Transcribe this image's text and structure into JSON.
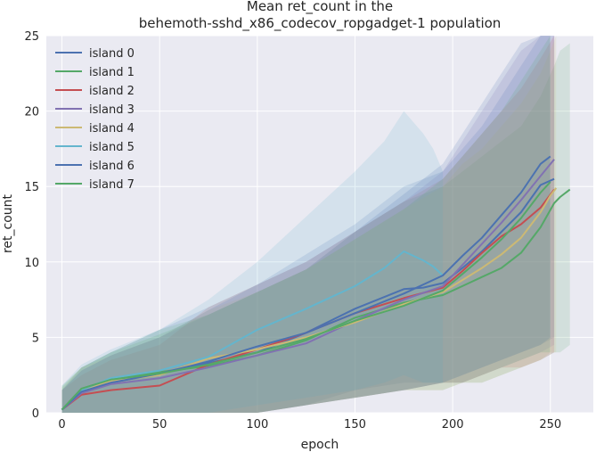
{
  "chart_data": {
    "type": "line",
    "title_lines": [
      "Mean ret_count in the",
      "behemoth-sshd_x86_codecov_ropgadget-1 population"
    ],
    "xlabel": "epoch",
    "ylabel": "ret_count",
    "xlim": [
      -8,
      272
    ],
    "ylim": [
      0,
      25
    ],
    "x_ticks": [
      0,
      50,
      100,
      150,
      200,
      250
    ],
    "y_ticks": [
      0,
      5,
      10,
      15,
      20,
      25
    ],
    "grid": true,
    "background": "#eaeaf2",
    "legend_position": "upper-left",
    "band": "shaded spread around each mean line",
    "series": [
      {
        "name": "island 0",
        "color": "#4c72b0",
        "x": [
          0,
          10,
          25,
          50,
          75,
          100,
          125,
          150,
          175,
          185,
          195,
          205,
          215,
          225,
          235,
          245,
          252
        ],
        "y": [
          0.2,
          1.4,
          2.0,
          2.6,
          3.3,
          4.0,
          5.3,
          6.9,
          8.2,
          8.3,
          8.6,
          9.6,
          10.7,
          12.0,
          13.3,
          15.1,
          15.5
        ],
        "band_low": [
          0,
          0,
          0,
          0,
          0,
          0,
          0.5,
          1.5,
          2,
          2,
          2,
          2.5,
          3,
          3.5,
          4,
          4.5,
          5
        ],
        "band_high": [
          1.5,
          3,
          4,
          5.5,
          7,
          8.5,
          10.5,
          12.5,
          15,
          15.5,
          16,
          17.5,
          19,
          21,
          23,
          25,
          25
        ]
      },
      {
        "name": "island 1",
        "color": "#55a868",
        "x": [
          0,
          10,
          25,
          50,
          75,
          100,
          125,
          150,
          175,
          195,
          205,
          215,
          225,
          235,
          245,
          252,
          255,
          260
        ],
        "y": [
          0.2,
          1.6,
          2.2,
          2.7,
          3.1,
          3.8,
          4.8,
          6.3,
          7.3,
          7.8,
          8.4,
          9.0,
          9.6,
          10.6,
          12.3,
          13.9,
          14.3,
          14.8
        ],
        "band_low": [
          0,
          0,
          0,
          0,
          0,
          0,
          0.5,
          1,
          1.5,
          1.5,
          2,
          2,
          2.5,
          3,
          3.5,
          4,
          4,
          4.5
        ],
        "band_high": [
          1.8,
          3,
          4,
          5.5,
          6.5,
          8,
          9.5,
          12,
          14,
          15,
          16,
          17,
          18,
          19,
          21,
          23,
          24,
          24.5
        ]
      },
      {
        "name": "island 2",
        "color": "#c44e52",
        "x": [
          0,
          10,
          25,
          50,
          75,
          100,
          125,
          150,
          175,
          195,
          205,
          215,
          225,
          235,
          245,
          252
        ],
        "y": [
          0.2,
          1.2,
          1.5,
          1.8,
          3.2,
          4.2,
          5.3,
          6.6,
          7.6,
          8.3,
          9.4,
          10.6,
          11.7,
          12.5,
          13.6,
          14.8
        ],
        "band_low": [
          0,
          0,
          0,
          0,
          0,
          0,
          0.5,
          1,
          1.5,
          2,
          2,
          2.5,
          3,
          3,
          3.5,
          4
        ],
        "band_high": [
          1.5,
          2.5,
          3.5,
          4.5,
          7,
          8.5,
          10,
          12,
          14,
          15.5,
          17,
          18.5,
          20,
          21.5,
          23.5,
          25
        ]
      },
      {
        "name": "island 3",
        "color": "#8172b2",
        "x": [
          0,
          10,
          25,
          50,
          75,
          100,
          125,
          150,
          175,
          195,
          205,
          215,
          225,
          235,
          245,
          252
        ],
        "y": [
          0.2,
          1.3,
          1.9,
          2.3,
          3.0,
          3.8,
          4.6,
          6.1,
          7.5,
          8.4,
          9.8,
          11.2,
          12.6,
          14.1,
          15.7,
          16.8
        ],
        "band_low": [
          0,
          0,
          0,
          0,
          0,
          0,
          0.5,
          1,
          1.5,
          2,
          2,
          2.5,
          3,
          3.5,
          4,
          4.5
        ],
        "band_high": [
          1.5,
          2.8,
          3.8,
          5,
          6.5,
          8,
          9.5,
          12,
          14,
          16,
          18,
          20,
          22,
          24,
          25,
          25
        ]
      },
      {
        "name": "island 4",
        "color": "#ccb974",
        "x": [
          0,
          10,
          25,
          50,
          75,
          100,
          125,
          150,
          175,
          195,
          205,
          215,
          225,
          235,
          245,
          250,
          253
        ],
        "y": [
          0.2,
          1.5,
          2.1,
          2.5,
          3.6,
          4.2,
          5.0,
          6.0,
          7.2,
          8.0,
          8.8,
          9.6,
          10.5,
          11.6,
          13.3,
          14.4,
          14.9
        ],
        "band_low": [
          0,
          0,
          0,
          0,
          0,
          0,
          0.5,
          1,
          1.5,
          1.5,
          2,
          2,
          2.5,
          3,
          3.5,
          4,
          4
        ],
        "band_high": [
          1.6,
          3,
          3.8,
          5,
          6.8,
          8,
          9.5,
          11.5,
          13.5,
          15,
          16.5,
          17.5,
          19,
          20.5,
          22.5,
          24,
          25
        ]
      },
      {
        "name": "island 5",
        "color": "#64b5cd",
        "x": [
          0,
          10,
          25,
          50,
          75,
          100,
          125,
          150,
          165,
          175,
          185,
          190,
          195
        ],
        "y": [
          0.2,
          1.5,
          2.3,
          2.8,
          3.7,
          5.5,
          6.9,
          8.4,
          9.6,
          10.7,
          10.1,
          9.7,
          9.1
        ],
        "band_low": [
          0,
          0,
          0,
          0,
          0,
          0.5,
          1,
          1.5,
          2,
          2.5,
          2,
          2,
          2
        ],
        "band_high": [
          1.8,
          3.2,
          4.2,
          5.5,
          7.5,
          10,
          13,
          16,
          18,
          20,
          18.5,
          17.5,
          16
        ]
      },
      {
        "name": "island 6",
        "color": "#4c72b0",
        "x": [
          0,
          10,
          25,
          50,
          75,
          100,
          125,
          150,
          175,
          195,
          205,
          215,
          225,
          235,
          245,
          250
        ],
        "y": [
          0.2,
          1.4,
          2.0,
          2.6,
          3.4,
          4.4,
          5.3,
          6.6,
          7.9,
          9.1,
          10.4,
          11.6,
          13.1,
          14.6,
          16.5,
          17.0
        ],
        "band_low": [
          0,
          0,
          0,
          0,
          0,
          0,
          0.5,
          1,
          1.5,
          2,
          2.5,
          3,
          3.5,
          4,
          4.5,
          5
        ],
        "band_high": [
          1.5,
          2.8,
          3.8,
          5,
          6.8,
          8.5,
          10,
          12,
          14.5,
          16.5,
          18.5,
          20.5,
          22.5,
          24.5,
          25,
          25
        ]
      },
      {
        "name": "island 7",
        "color": "#55a868",
        "x": [
          0,
          10,
          25,
          50,
          75,
          100,
          125,
          150,
          175,
          195,
          205,
          215,
          225,
          235,
          245,
          250
        ],
        "y": [
          0.2,
          1.6,
          2.2,
          2.6,
          3.2,
          4.0,
          4.9,
          6.1,
          7.1,
          8.1,
          9.2,
          10.3,
          11.5,
          12.9,
          14.6,
          15.3
        ],
        "band_low": [
          0,
          0,
          0,
          0,
          0,
          0,
          0.5,
          1,
          1.5,
          2,
          2,
          2.5,
          3,
          3.5,
          4,
          4
        ],
        "band_high": [
          1.7,
          3,
          4,
          5.2,
          6.5,
          8,
          9.5,
          11.5,
          13.5,
          15.5,
          17,
          18.5,
          20,
          22,
          24,
          25
        ]
      }
    ]
  }
}
